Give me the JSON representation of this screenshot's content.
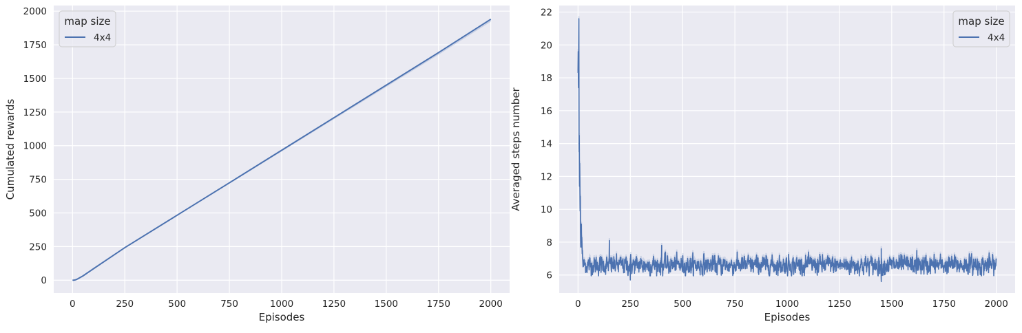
{
  "chart_data": [
    {
      "type": "line",
      "title": "",
      "xlabel": "Episodes",
      "ylabel": "Cumulated rewards",
      "xlim": [
        -90,
        2090
      ],
      "ylim": [
        -96,
        2042
      ],
      "xticks": [
        0,
        250,
        500,
        750,
        1000,
        1250,
        1500,
        1750,
        2000
      ],
      "yticks": [
        0,
        250,
        500,
        750,
        1000,
        1250,
        1500,
        1750,
        2000
      ],
      "grid": true,
      "legend": {
        "title": "map size",
        "placement": "upper-left"
      },
      "series": [
        {
          "name": "4x4",
          "color": "#4c72b0",
          "x": [
            0,
            5,
            10,
            15,
            20,
            25,
            50,
            100,
            250,
            500,
            750,
            1000,
            1250,
            1500,
            1750,
            2000
          ],
          "y": [
            0,
            0,
            1,
            3,
            6,
            10,
            32,
            85,
            242,
            483,
            724,
            966,
            1208,
            1450,
            1692,
            1940
          ],
          "band": {
            "lower_offset": 18,
            "upper_offset": 4
          }
        }
      ]
    },
    {
      "type": "line",
      "title": "",
      "xlabel": "Episodes",
      "ylabel": "Averaged steps number",
      "xlim": [
        -90,
        2090
      ],
      "ylim": [
        4.9,
        22.4
      ],
      "xticks": [
        0,
        250,
        500,
        750,
        1000,
        1250,
        1500,
        1750,
        2000
      ],
      "yticks": [
        6,
        8,
        10,
        12,
        14,
        16,
        18,
        20,
        22
      ],
      "grid": true,
      "legend": {
        "title": "map size",
        "placement": "upper-right"
      },
      "series": [
        {
          "name": "4x4",
          "color": "#4c72b0",
          "initial_x": [
            0,
            1,
            2,
            3,
            4,
            5,
            6,
            7,
            8,
            9,
            10,
            11,
            12,
            13,
            14,
            15,
            16,
            17,
            18,
            19,
            20,
            21,
            22,
            23,
            24,
            25
          ],
          "initial_y": [
            18.3,
            19.6,
            17.4,
            19.5,
            21.6,
            13.5,
            14.5,
            11.4,
            12.8,
            11.5,
            9.9,
            10.8,
            8.6,
            7.7,
            8.5,
            8.0,
            9.1,
            7.7,
            8.3,
            7.9,
            7.3,
            7.5,
            7.0,
            6.8,
            6.5,
            6.9
          ],
          "steady_mean": 6.6,
          "steady_spread": 0.45,
          "spikes": [
            {
              "x": 150,
              "y": 8.1
            },
            {
              "x": 400,
              "y": 7.8
            },
            {
              "x": 250,
              "y": 5.7
            },
            {
              "x": 1450,
              "y": 5.6
            },
            {
              "x": 1450,
              "y": 7.6
            },
            {
              "x": 1620,
              "y": 7.5
            }
          ]
        }
      ]
    }
  ]
}
